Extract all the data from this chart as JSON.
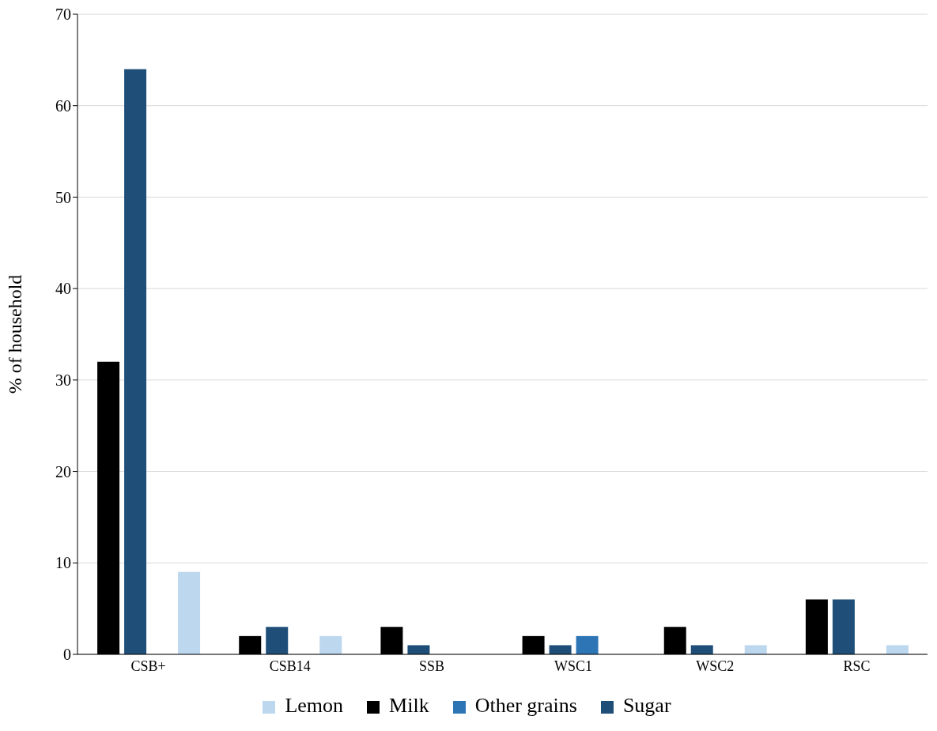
{
  "chart_data": {
    "type": "bar",
    "ylabel": "% of household",
    "categories": [
      "CSB+",
      "CSB14",
      "SSB",
      "WSC1",
      "WSC2",
      "RSC"
    ],
    "series": [
      {
        "name": "Milk",
        "color": "#000000",
        "values": [
          32,
          2,
          3,
          2,
          3,
          6
        ]
      },
      {
        "name": "Sugar",
        "color": "#1f4e79",
        "values": [
          64,
          3,
          1,
          1,
          1,
          6
        ]
      },
      {
        "name": "Other grains",
        "color": "#2e75b6",
        "values": [
          0,
          0,
          0,
          2,
          0,
          0
        ]
      },
      {
        "name": "Lemon",
        "color": "#bdd7ee",
        "values": [
          9,
          2,
          0,
          0,
          1,
          1
        ]
      }
    ],
    "ylim": [
      0,
      70
    ],
    "yticks": [
      0,
      10,
      20,
      30,
      40,
      50,
      60,
      70
    ],
    "grid": "y",
    "legend": "bottom"
  }
}
